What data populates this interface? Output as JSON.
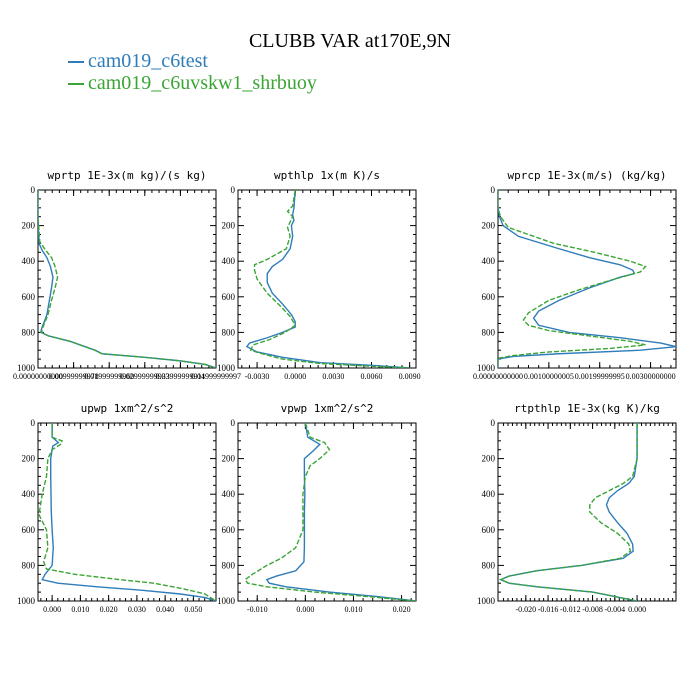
{
  "title": "CLUBB VAR at170E,9N",
  "legend": [
    {
      "label": "cam019_c6test",
      "color": "#2E7DBA"
    },
    {
      "label": "cam019_c6uvskw1_shrbuoy",
      "color": "#3AA535"
    }
  ],
  "chart_data": [
    {
      "type": "line",
      "title": "wprtp  1E-3x(m kg)/(s kg)",
      "xlim": [
        0.0,
        0.05
      ],
      "ylim": [
        1000,
        0
      ],
      "y_ticks": [
        0,
        200,
        400,
        600,
        800,
        1000
      ],
      "x_ticks": [
        0.0,
        0.01,
        0.02,
        0.03,
        0.04,
        0.05
      ],
      "x_tick_labels": [
        "0.00000000000",
        "0.00999999978",
        "0.01999999960",
        "0.02999999933",
        "0.03999999911",
        "0.04999999997"
      ],
      "series": [
        {
          "y": [
            0,
            150,
            300,
            340,
            380,
            430,
            490,
            550,
            620,
            700,
            780,
            800,
            820,
            850,
            900,
            920,
            940,
            960,
            980,
            1000
          ],
          "x": [
            0.0,
            0.0,
            0.0003,
            0.0012,
            0.0025,
            0.0035,
            0.0042,
            0.0038,
            0.0032,
            0.0025,
            0.001,
            0.0008,
            0.003,
            0.009,
            0.016,
            0.018,
            0.03,
            0.04,
            0.047,
            0.05
          ]
        },
        {
          "y": [
            0,
            150,
            290,
            340,
            380,
            430,
            490,
            550,
            620,
            700,
            780,
            800,
            820,
            850,
            900,
            920,
            940,
            960,
            980,
            1000
          ],
          "x": [
            0.0,
            0.0,
            0.0005,
            0.0022,
            0.0038,
            0.0048,
            0.0055,
            0.0048,
            0.0038,
            0.0028,
            0.0012,
            0.001,
            0.003,
            0.009,
            0.016,
            0.018,
            0.03,
            0.04,
            0.047,
            0.05
          ]
        }
      ]
    },
    {
      "type": "line",
      "title": "wpthlp  1x(m K)/s",
      "xlim": [
        -0.0045,
        0.0095
      ],
      "ylim": [
        1000,
        0
      ],
      "y_ticks": [
        0,
        200,
        400,
        600,
        800,
        1000
      ],
      "x_ticks": [
        -0.003,
        0.0,
        0.003,
        0.006,
        0.009
      ],
      "x_tick_labels": [
        "-0.0030",
        "0.0000",
        "0.0030",
        "0.0060",
        "0.0090"
      ],
      "series": [
        {
          "y": [
            0,
            100,
            140,
            170,
            200,
            260,
            330,
            390,
            430,
            470,
            520,
            580,
            640,
            700,
            740,
            770,
            800,
            830,
            860,
            880,
            910,
            940,
            970,
            985,
            1000
          ],
          "x": [
            0.0,
            -0.0001,
            -0.0002,
            -0.0001,
            -0.0003,
            -0.0002,
            -0.0004,
            -0.001,
            -0.0018,
            -0.0022,
            -0.0022,
            -0.0018,
            -0.001,
            -0.0003,
            0.0,
            0.0,
            -0.001,
            -0.0022,
            -0.0036,
            -0.0038,
            -0.003,
            -0.001,
            0.002,
            0.006,
            0.009
          ]
        },
        {
          "y": [
            0,
            90,
            120,
            150,
            180,
            210,
            260,
            330,
            390,
            420,
            450,
            500,
            580,
            650,
            710,
            760,
            800,
            840,
            870,
            900,
            920,
            950,
            975,
            990,
            1000
          ],
          "x": [
            0.0,
            -0.0002,
            -0.0006,
            -0.0002,
            -0.0004,
            -0.0006,
            -0.0004,
            -0.0007,
            -0.0022,
            -0.0032,
            -0.0032,
            -0.003,
            -0.0022,
            -0.0012,
            -0.0004,
            0.0,
            -0.0008,
            -0.002,
            -0.0033,
            -0.0035,
            -0.0026,
            -0.001,
            0.002,
            0.006,
            0.009
          ]
        }
      ]
    },
    {
      "type": "line",
      "title": "wprcp  1E-3x(m/s) (kg/kg)",
      "xlim": [
        0.0,
        0.0035
      ],
      "ylim": [
        1000,
        0
      ],
      "y_ticks": [
        0,
        200,
        400,
        600,
        800,
        1000
      ],
      "x_ticks": [
        0.0,
        0.001,
        0.002,
        0.003
      ],
      "x_tick_labels": [
        "0.00000000000",
        "0.00100000005",
        "0.00199999995",
        "0.00300000000"
      ],
      "series": [
        {
          "y": [
            0,
            100,
            150,
            200,
            260,
            330,
            380,
            420,
            450,
            470,
            490,
            550,
            620,
            680,
            720,
            760,
            800,
            830,
            860,
            880,
            900,
            920,
            935,
            950,
            1000
          ],
          "x": [
            0.0,
            0.0,
            3e-05,
            0.0001,
            0.0004,
            0.0012,
            0.0018,
            0.0024,
            0.00265,
            0.00268,
            0.0024,
            0.0018,
            0.0012,
            0.0008,
            0.0007,
            0.0008,
            0.0014,
            0.0024,
            0.0032,
            0.0035,
            0.0028,
            0.0012,
            0.0003,
            0.0,
            0.0
          ]
        },
        {
          "y": [
            0,
            100,
            150,
            210,
            250,
            300,
            350,
            400,
            430,
            460,
            500,
            560,
            620,
            690,
            730,
            760,
            790,
            820,
            850,
            870,
            890,
            910,
            930,
            945,
            1000
          ],
          "x": [
            0.0,
            0.0,
            5e-05,
            0.0002,
            0.0006,
            0.0011,
            0.0019,
            0.0026,
            0.0029,
            0.0028,
            0.0023,
            0.0016,
            0.001,
            0.0006,
            0.0005,
            0.0006,
            0.001,
            0.0018,
            0.0026,
            0.0029,
            0.0022,
            0.001,
            0.0003,
            0.0,
            0.0
          ]
        }
      ]
    },
    {
      "type": "line",
      "title": "upwp  1xm^2/s^2",
      "xlim": [
        -0.005,
        0.058
      ],
      "ylim": [
        1000,
        0
      ],
      "y_ticks": [
        0,
        200,
        400,
        600,
        800,
        1000
      ],
      "x_ticks": [
        0.0,
        0.01,
        0.02,
        0.03,
        0.04,
        0.05
      ],
      "x_tick_labels": [
        "0.000",
        "0.010",
        "0.020",
        "0.030",
        "0.040",
        "0.050"
      ],
      "series": [
        {
          "y": [
            0,
            80,
            110,
            130,
            150,
            200,
            300,
            400,
            500,
            600,
            700,
            800,
            850,
            880,
            900,
            920,
            940,
            960,
            980,
            1000
          ],
          "x": [
            0.0,
            0.0,
            0.0022,
            0.0002,
            0.0,
            -0.0005,
            -0.0005,
            -0.0004,
            -0.0003,
            0.0,
            0.0004,
            0.0,
            -0.0025,
            -0.0035,
            0.002,
            0.016,
            0.032,
            0.045,
            0.054,
            0.058
          ]
        },
        {
          "y": [
            0,
            80,
            100,
            120,
            150,
            200,
            300,
            400,
            500,
            520,
            600,
            700,
            780,
            820,
            850,
            880,
            900,
            930,
            960,
            1000
          ],
          "x": [
            0.0,
            0.0,
            0.0035,
            0.003,
            0.0,
            -0.0015,
            -0.002,
            -0.0035,
            -0.0045,
            -0.0045,
            -0.002,
            -0.0015,
            -0.003,
            -0.002,
            0.008,
            0.024,
            0.036,
            0.046,
            0.054,
            0.058
          ]
        }
      ]
    },
    {
      "type": "line",
      "title": "vpwp  1xm^2/s^2",
      "xlim": [
        -0.014,
        0.023
      ],
      "ylim": [
        1000,
        0
      ],
      "y_ticks": [
        0,
        200,
        400,
        600,
        800,
        1000
      ],
      "x_ticks": [
        -0.01,
        0.0,
        0.01,
        0.02
      ],
      "x_tick_labels": [
        "-0.010",
        "0.000",
        "0.010",
        "0.020"
      ],
      "series": [
        {
          "y": [
            0,
            80,
            120,
            160,
            200,
            300,
            400,
            500,
            600,
            700,
            780,
            830,
            860,
            880,
            900,
            920,
            950,
            975,
            1000
          ],
          "x": [
            0.0,
            0.0005,
            0.003,
            0.0015,
            -0.0002,
            -0.0002,
            -0.0001,
            -0.0002,
            -0.0002,
            -0.0002,
            -0.0003,
            -0.002,
            -0.006,
            -0.008,
            -0.0075,
            -0.004,
            0.005,
            0.015,
            0.023
          ]
        },
        {
          "y": [
            0,
            80,
            110,
            150,
            200,
            240,
            300,
            400,
            500,
            600,
            700,
            760,
            800,
            850,
            880,
            900,
            920,
            950,
            975,
            1000
          ],
          "x": [
            0.0,
            0.001,
            0.004,
            0.005,
            0.003,
            0.001,
            0.0,
            -0.0005,
            -0.0005,
            -0.0005,
            -0.002,
            -0.005,
            -0.008,
            -0.011,
            -0.0125,
            -0.012,
            -0.008,
            0.002,
            0.013,
            0.023
          ]
        }
      ]
    },
    {
      "type": "line",
      "title": "rtpthlp  1E-3x(kg K)/kg",
      "xlim": [
        -0.025,
        0.007
      ],
      "ylim": [
        1000,
        0
      ],
      "y_ticks": [
        0,
        200,
        400,
        600,
        800,
        1000
      ],
      "x_ticks": [
        -0.02,
        -0.016,
        -0.012,
        -0.008,
        -0.004,
        0.0
      ],
      "x_tick_labels": [
        "-0.020",
        "-0.016",
        "-0.012",
        "-0.008",
        "-0.004",
        "0.000"
      ],
      "series": [
        {
          "y": [
            0,
            200,
            300,
            340,
            380,
            420,
            460,
            500,
            560,
            620,
            680,
            720,
            760,
            800,
            830,
            860,
            880,
            900,
            920,
            950,
            1000
          ],
          "x": [
            0.0,
            0.0,
            -0.0005,
            -0.0015,
            -0.0035,
            -0.005,
            -0.0055,
            -0.005,
            -0.0035,
            -0.0018,
            -0.0008,
            -0.0007,
            -0.0025,
            -0.01,
            -0.018,
            -0.023,
            -0.0245,
            -0.023,
            -0.018,
            -0.008,
            0.0
          ]
        },
        {
          "y": [
            0,
            200,
            300,
            340,
            380,
            420,
            460,
            500,
            560,
            620,
            680,
            720,
            760,
            800,
            830,
            860,
            880,
            900,
            920,
            950,
            1000
          ],
          "x": [
            0.0,
            0.0,
            -0.0008,
            -0.0025,
            -0.005,
            -0.0075,
            -0.0085,
            -0.0085,
            -0.0065,
            -0.0035,
            -0.0015,
            -0.0012,
            -0.003,
            -0.01,
            -0.018,
            -0.023,
            -0.0245,
            -0.023,
            -0.018,
            -0.008,
            0.0
          ]
        }
      ]
    }
  ]
}
